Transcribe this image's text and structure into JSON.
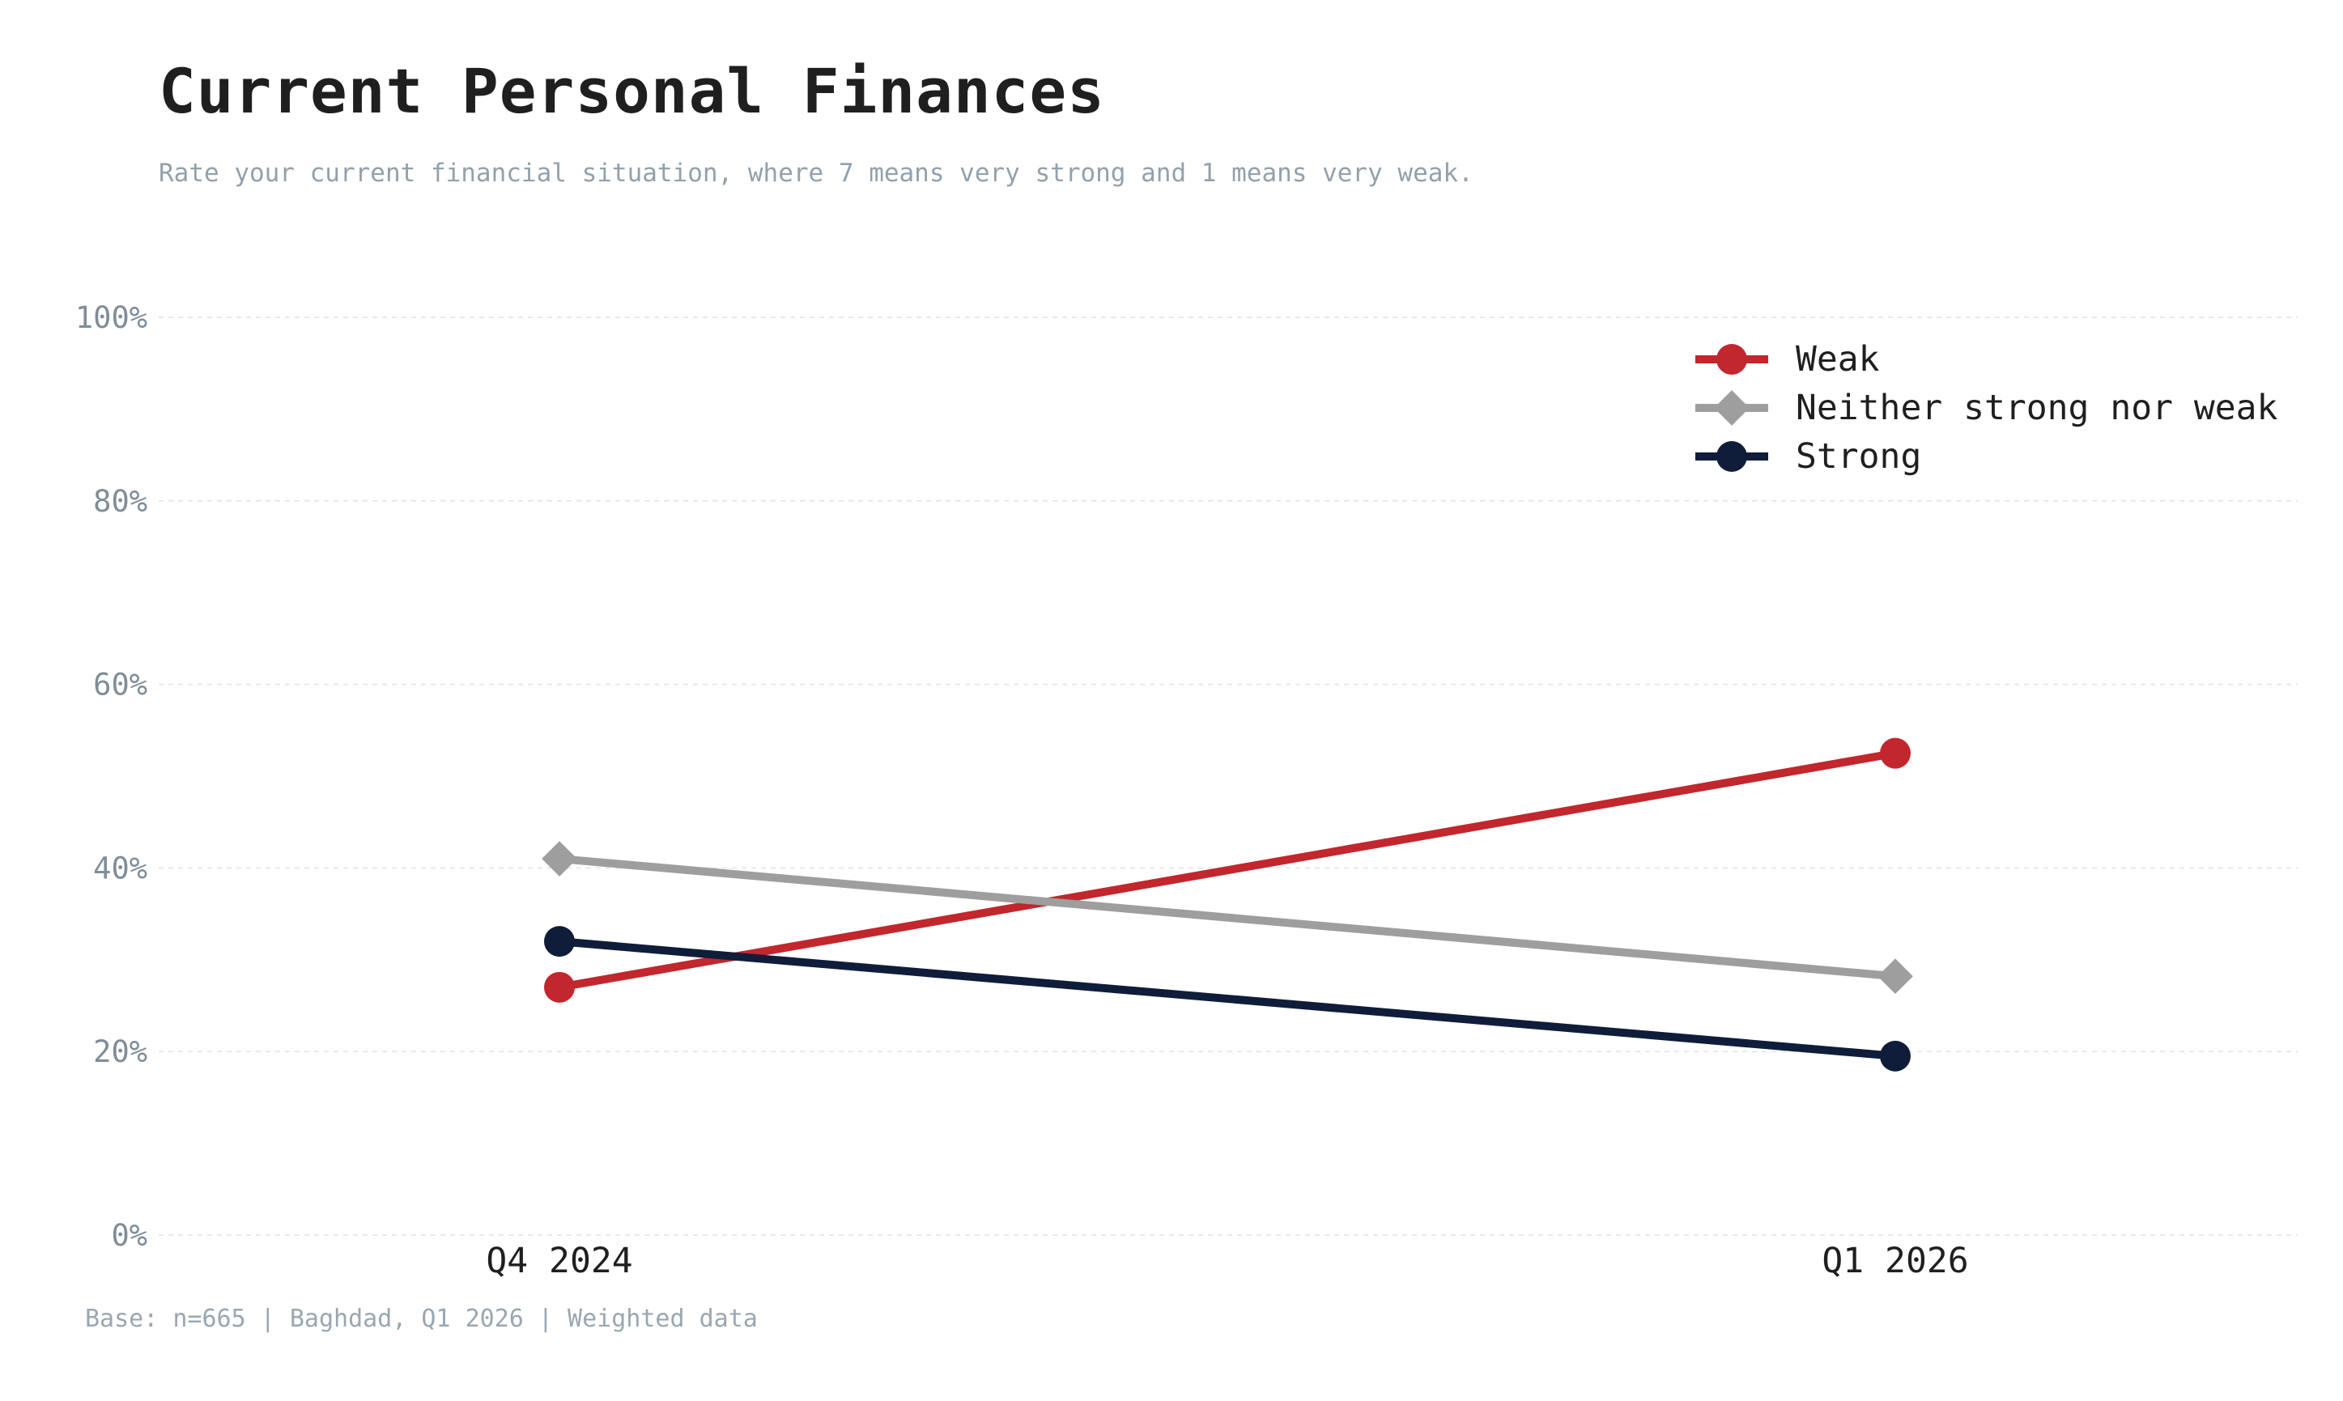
{
  "page": {
    "title": "Current Personal Finances",
    "subtitle": "Rate your current financial situation, where 7 means very strong and 1 means very weak.",
    "footer": "Base: n=665 | Baghdad, Q1 2026 | Weighted data"
  },
  "chart_data": {
    "type": "line",
    "title": "Current Personal Finances",
    "xlabel": "",
    "ylabel": "",
    "categories": [
      "Q4 2024",
      "Q1 2026"
    ],
    "ylim": [
      0,
      100
    ],
    "yticks": [
      0,
      20,
      40,
      60,
      80,
      100
    ],
    "ytick_labels": [
      "0%",
      "20%",
      "40%",
      "60%",
      "80%",
      "100%"
    ],
    "grid": true,
    "legend_position": "top-right",
    "series": [
      {
        "name": "Weak",
        "values": [
          27,
          52.5
        ],
        "color": "#c1272d",
        "marker": "circle"
      },
      {
        "name": "Neither strong nor weak",
        "values": [
          41,
          28.2
        ],
        "color": "#9e9e9e",
        "marker": "diamond"
      },
      {
        "name": "Strong",
        "values": [
          32,
          19.5
        ],
        "color": "#0f1d3a",
        "marker": "circle"
      }
    ]
  }
}
